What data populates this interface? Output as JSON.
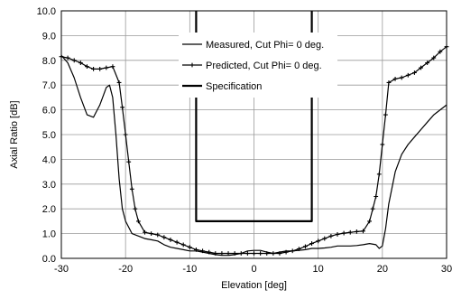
{
  "chart_data": {
    "type": "line",
    "title": "",
    "xlabel": "Elevation [deg]",
    "ylabel": "Axial Ratio [dB]",
    "xlim": [
      -30,
      30
    ],
    "ylim": [
      0,
      10
    ],
    "xticks": [
      -30,
      -20,
      -10,
      0,
      10,
      20,
      30
    ],
    "yticks": [
      0,
      1,
      2,
      3,
      4,
      5,
      6,
      7,
      8,
      9,
      10
    ],
    "xtick_labels": [
      "-30",
      "-20",
      "-10",
      "0",
      "10",
      "20",
      "30"
    ],
    "ytick_labels": [
      "0.0",
      "1.0",
      "2.0",
      "3.0",
      "4.0",
      "5.0",
      "6.0",
      "7.0",
      "8.0",
      "9.0",
      "10.0"
    ],
    "grid": true,
    "legend_position": "top-center",
    "series": [
      {
        "name": "Measured, Cut Phi= 0 deg.",
        "color": "#000000",
        "marker": "none",
        "x": [
          -30,
          -29,
          -28,
          -27,
          -26,
          -25,
          -24,
          -23,
          -22.5,
          -22,
          -21.5,
          -21,
          -20.5,
          -20,
          -19,
          -18,
          -17,
          -16,
          -15,
          -14,
          -13,
          -12,
          -11,
          -10,
          -9,
          -8,
          -7,
          -6,
          -5,
          -4,
          -3,
          -2,
          -1,
          0,
          1,
          2,
          3,
          4,
          5,
          6,
          7,
          8,
          9,
          10,
          11,
          12,
          13,
          14,
          15,
          16,
          17,
          18,
          19,
          19.5,
          20,
          20.5,
          21,
          22,
          23,
          24,
          25,
          26,
          27,
          28,
          29,
          30
        ],
        "y": [
          8.2,
          7.9,
          7.3,
          6.5,
          5.8,
          5.7,
          6.2,
          6.9,
          7.0,
          6.5,
          5.0,
          3.2,
          2.0,
          1.5,
          1.0,
          0.9,
          0.8,
          0.75,
          0.7,
          0.55,
          0.45,
          0.4,
          0.35,
          0.3,
          0.3,
          0.25,
          0.2,
          0.15,
          0.12,
          0.12,
          0.15,
          0.2,
          0.3,
          0.32,
          0.32,
          0.25,
          0.2,
          0.25,
          0.3,
          0.3,
          0.32,
          0.35,
          0.4,
          0.4,
          0.42,
          0.45,
          0.5,
          0.5,
          0.5,
          0.52,
          0.55,
          0.6,
          0.55,
          0.4,
          0.5,
          1.2,
          2.2,
          3.5,
          4.2,
          4.6,
          4.9,
          5.2,
          5.5,
          5.8,
          6.0,
          6.2
        ]
      },
      {
        "name": "Predicted, Cut Phi= 0 deg.",
        "color": "#000000",
        "marker": "plus",
        "x": [
          -30,
          -29,
          -28,
          -27,
          -26,
          -25,
          -24,
          -23,
          -22,
          -21,
          -20.5,
          -20,
          -19.5,
          -19,
          -18.5,
          -18,
          -17,
          -16,
          -15,
          -14,
          -13,
          -12,
          -11,
          -10,
          -9,
          -8,
          -7,
          -6,
          -5,
          -4,
          -3,
          -2,
          -1,
          0,
          1,
          2,
          3,
          4,
          5,
          6,
          7,
          8,
          9,
          10,
          11,
          12,
          13,
          14,
          15,
          16,
          17,
          18,
          18.5,
          19,
          19.5,
          20,
          20.5,
          21,
          22,
          23,
          24,
          25,
          26,
          27,
          28,
          29,
          30
        ],
        "y": [
          8.15,
          8.1,
          8.0,
          7.9,
          7.75,
          7.65,
          7.65,
          7.7,
          7.75,
          7.1,
          6.1,
          5.0,
          3.9,
          2.8,
          2.0,
          1.5,
          1.05,
          1.0,
          0.95,
          0.85,
          0.75,
          0.65,
          0.55,
          0.45,
          0.35,
          0.3,
          0.25,
          0.2,
          0.2,
          0.2,
          0.2,
          0.2,
          0.2,
          0.2,
          0.2,
          0.2,
          0.2,
          0.2,
          0.25,
          0.3,
          0.38,
          0.48,
          0.6,
          0.7,
          0.8,
          0.9,
          0.97,
          1.02,
          1.05,
          1.08,
          1.1,
          1.5,
          2.0,
          2.5,
          3.4,
          4.6,
          5.8,
          7.1,
          7.25,
          7.3,
          7.4,
          7.5,
          7.7,
          7.9,
          8.1,
          8.35,
          8.55
        ]
      },
      {
        "name": "Specification",
        "color": "#000000",
        "marker": "none",
        "line_width": 2.2,
        "x": [
          -9,
          -9,
          9,
          9
        ],
        "y": [
          10,
          1.5,
          1.5,
          10
        ]
      }
    ]
  }
}
